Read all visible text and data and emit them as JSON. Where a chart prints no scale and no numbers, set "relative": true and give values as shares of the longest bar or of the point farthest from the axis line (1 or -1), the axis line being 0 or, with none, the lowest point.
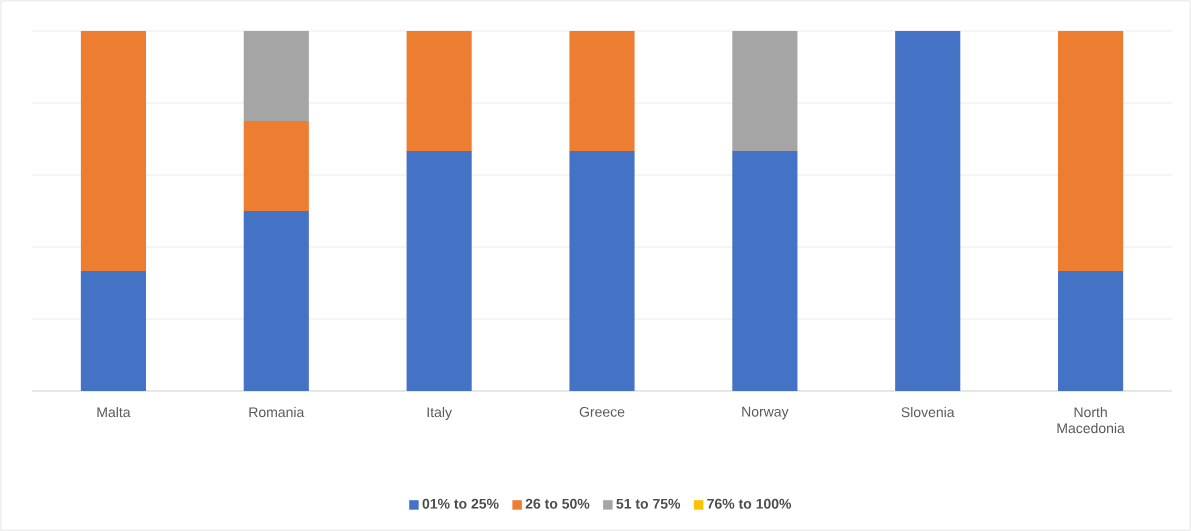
{
  "chart_data": {
    "type": "bar",
    "stacked": true,
    "relative": true,
    "grid": "y",
    "legend": "bottom",
    "categories": [
      "Malta",
      "Romania",
      "Italy",
      "Greece",
      "Norway",
      "Slovenia",
      "North Macedonia"
    ],
    "series": [
      {
        "name": "01% to 25%",
        "color": "#4472c4",
        "values": [
          0.333,
          0.5,
          0.667,
          0.667,
          0.667,
          1,
          0.333
        ]
      },
      {
        "name": "26 to 50%",
        "color": "#ed7d31",
        "values": [
          0.667,
          0.25,
          0.333,
          0.333,
          0,
          0,
          0.667
        ]
      },
      {
        "name": "51 to 75%",
        "color": "#a5a5a5",
        "values": [
          0,
          0.25,
          0,
          0,
          0.333,
          0,
          0
        ]
      },
      {
        "name": "76% to 100%",
        "color": "#ffc000",
        "values": [
          0,
          0,
          0,
          0,
          0,
          0,
          0
        ]
      }
    ]
  }
}
